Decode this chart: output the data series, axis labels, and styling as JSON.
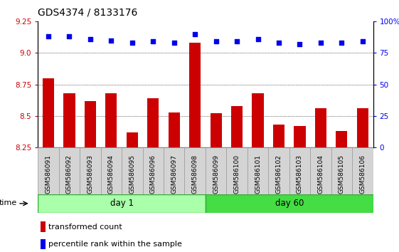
{
  "title": "GDS4374 / 8133176",
  "samples": [
    "GSM586091",
    "GSM586092",
    "GSM586093",
    "GSM586094",
    "GSM586095",
    "GSM586096",
    "GSM586097",
    "GSM586098",
    "GSM586099",
    "GSM586100",
    "GSM586101",
    "GSM586102",
    "GSM586103",
    "GSM586104",
    "GSM586105",
    "GSM586106"
  ],
  "bar_values": [
    8.8,
    8.68,
    8.62,
    8.68,
    8.37,
    8.64,
    8.53,
    9.08,
    8.52,
    8.58,
    8.68,
    8.43,
    8.42,
    8.56,
    8.38,
    8.56
  ],
  "dot_values": [
    88,
    88,
    86,
    85,
    83,
    84,
    83,
    90,
    84,
    84,
    86,
    83,
    82,
    83,
    83,
    84
  ],
  "ylim_left": [
    8.25,
    9.25
  ],
  "ylim_right": [
    0,
    100
  ],
  "yticks_left": [
    8.25,
    8.5,
    8.75,
    9.0,
    9.25
  ],
  "yticks_right": [
    0,
    25,
    50,
    75,
    100
  ],
  "bar_color": "#cc0000",
  "dot_color": "#0000ee",
  "day1_group": [
    0,
    7
  ],
  "day60_group": [
    8,
    15
  ],
  "day1_label": "day 1",
  "day60_label": "day 60",
  "time_label": "time",
  "legend_bar": "transformed count",
  "legend_dot": "percentile rank within the sample",
  "group_color_light": "#aaffaa",
  "group_color_dark": "#44dd44",
  "tick_box_color": "#d4d4d4",
  "tick_box_border": "#999999",
  "title_fontsize": 10,
  "tick_fontsize": 7.5,
  "sample_fontsize": 6.5
}
